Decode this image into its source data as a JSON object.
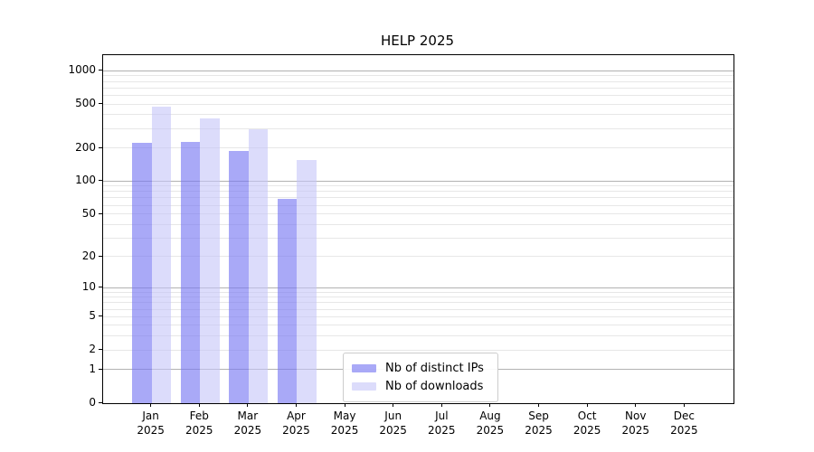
{
  "chart_data": {
    "type": "bar",
    "title": "HELP 2025",
    "yscale": "log1p",
    "ylim": [
      0,
      1400
    ],
    "grid": "horizontal",
    "legend_position": "lower center",
    "categories": [
      "Jan",
      "Feb",
      "Mar",
      "Apr",
      "May",
      "Jun",
      "Jul",
      "Aug",
      "Sep",
      "Oct",
      "Nov",
      "Dec"
    ],
    "x_sublabel": "2025",
    "yticks": [
      {
        "label": "0",
        "value": 0
      },
      {
        "label": "1",
        "value": 1
      },
      {
        "label": "2",
        "value": 2
      },
      {
        "label": "5",
        "value": 5
      },
      {
        "label": "10",
        "value": 10
      },
      {
        "label": "20",
        "value": 20
      },
      {
        "label": "50",
        "value": 50
      },
      {
        "label": "100",
        "value": 100
      },
      {
        "label": "200",
        "value": 200
      },
      {
        "label": "500",
        "value": 500
      },
      {
        "label": "1000",
        "value": 1000
      }
    ],
    "major_ticks": [
      1,
      10,
      100,
      1000
    ],
    "minor_gridlines": [
      3,
      4,
      6,
      7,
      8,
      9,
      30,
      40,
      60,
      70,
      80,
      90,
      300,
      400,
      600,
      700,
      800,
      900
    ],
    "series": [
      {
        "name": "Nb of distinct IPs",
        "color": "rgba(119, 119, 242, 0.63)",
        "values": [
          220,
          225,
          185,
          68,
          0,
          0,
          0,
          0,
          0,
          0,
          0,
          0
        ]
      },
      {
        "name": "Nb of downloads",
        "color": "rgba(196, 196, 249, 0.60)",
        "values": [
          470,
          365,
          295,
          155,
          0,
          0,
          0,
          0,
          0,
          0,
          0,
          0
        ]
      }
    ]
  },
  "colors": {
    "spine": "#000000",
    "major_grid": "#b2b2b2",
    "minor_grid": "#e7e7e7",
    "background": "#ffffff",
    "legend_border": "#cccccc"
  }
}
